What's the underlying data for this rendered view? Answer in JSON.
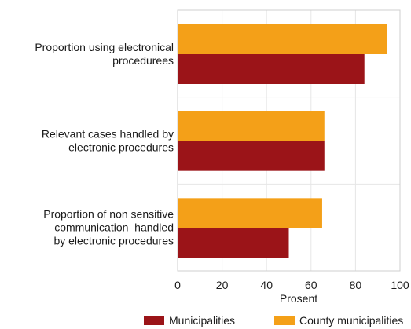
{
  "chart_data": {
    "type": "bar",
    "orientation": "horizontal",
    "categories": [
      [
        "Proportion using electronical",
        "procedurees"
      ],
      [
        "Relevant cases handled by",
        "electronic procedures"
      ],
      [
        "Proportion of non sensitive",
        "communication  handled",
        "by electronic procedures"
      ]
    ],
    "series": [
      {
        "name": "County municipalities",
        "color": "#f4a018",
        "values": [
          94,
          66,
          65
        ]
      },
      {
        "name": "Municipalities",
        "color": "#9b1418",
        "values": [
          84,
          66,
          50
        ]
      }
    ],
    "xlabel": "Prosent",
    "xlim": [
      0,
      100
    ],
    "xticks": [
      0,
      20,
      40,
      60,
      80,
      100
    ],
    "grid": true,
    "legend_position": "bottom",
    "legend_order": [
      "Municipalities",
      "County municipalities"
    ]
  }
}
